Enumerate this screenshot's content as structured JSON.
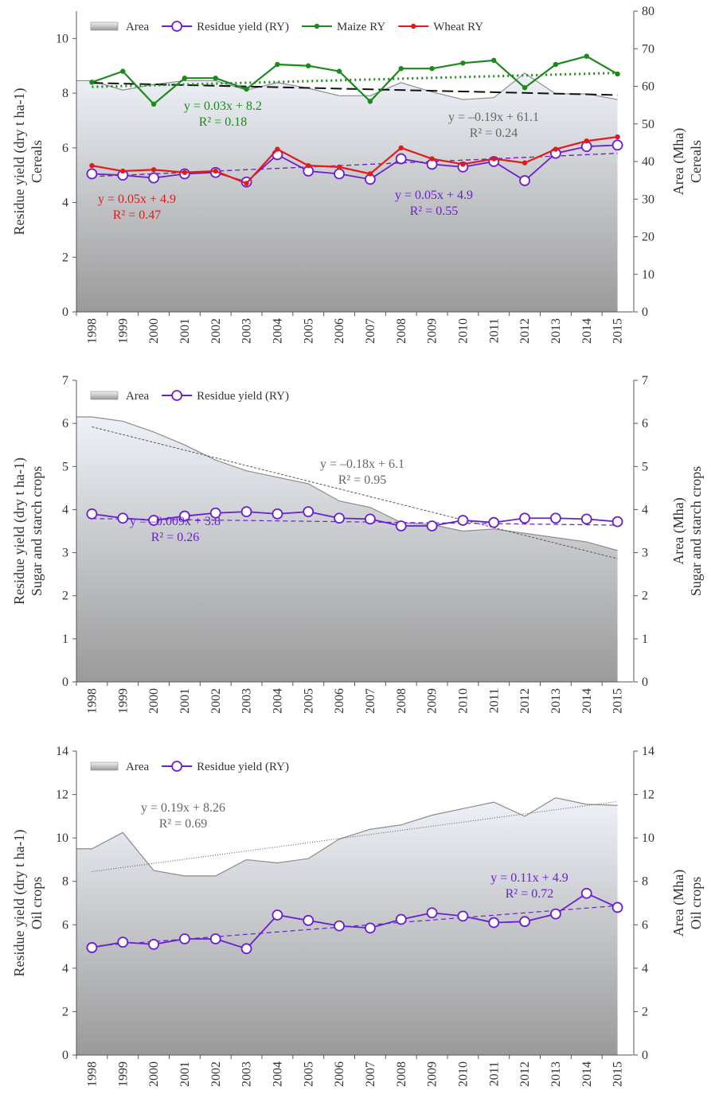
{
  "chart_data": [
    {
      "type": "line",
      "panel": "cereals",
      "x": [
        1998,
        1999,
        2000,
        2001,
        2002,
        2003,
        2004,
        2005,
        2006,
        2007,
        2008,
        2009,
        2010,
        2011,
        2012,
        2013,
        2014,
        2015
      ],
      "ylabel_left": [
        "Residue yield (dry t ha-1)",
        "Cereals"
      ],
      "ylabel_right": [
        "Area (Mha)",
        "Cereals"
      ],
      "ylim_left": [
        0,
        11
      ],
      "yticks_left": [
        0,
        2,
        4,
        6,
        8,
        10
      ],
      "ylim_right": [
        0,
        80
      ],
      "yticks_right": [
        0,
        10,
        20,
        30,
        40,
        50,
        60,
        70,
        80
      ],
      "legend": [
        "Area",
        "Residue yield (RY)",
        "Maize RY",
        "Wheat RY"
      ],
      "area": {
        "name": "Area",
        "axis": "right",
        "color": "#8c8c8c",
        "values": [
          61.5,
          59,
          60.5,
          61.5,
          61.5,
          59,
          61,
          59.5,
          57.5,
          57.5,
          61,
          58.5,
          56.5,
          57,
          63.5,
          58,
          58,
          56.5
        ]
      },
      "series": [
        {
          "name": "Residue yield (RY)",
          "axis": "left",
          "color": "#6a1fd0",
          "marker": "open-circle",
          "values": [
            5.05,
            5.0,
            4.9,
            5.05,
            5.1,
            4.75,
            5.75,
            5.15,
            5.05,
            4.85,
            5.6,
            5.4,
            5.3,
            5.5,
            4.8,
            5.8,
            6.05,
            6.1
          ]
        },
        {
          "name": "Maize RY",
          "axis": "left",
          "color": "#1a8a1a",
          "marker": "dot",
          "values": [
            8.4,
            8.8,
            7.6,
            8.55,
            8.55,
            8.15,
            9.05,
            9.0,
            8.8,
            7.7,
            8.9,
            8.9,
            9.1,
            9.2,
            8.2,
            9.05,
            9.35,
            8.7
          ]
        },
        {
          "name": "Wheat RY",
          "axis": "left",
          "color": "#e41a1a",
          "marker": "dot",
          "values": [
            5.35,
            5.15,
            5.2,
            5.1,
            5.15,
            4.7,
            5.95,
            5.35,
            5.3,
            5.05,
            6.0,
            5.6,
            5.4,
            5.6,
            5.45,
            5.95,
            6.25,
            6.4
          ]
        }
      ],
      "trendlines": [
        {
          "of": "Area",
          "equation": "y = –0.19x + 61.1",
          "r2": "R² = 0.24",
          "slope": -0.19,
          "intercept": 61.1
        },
        {
          "of": "Maize RY",
          "equation": "y = 0.03x + 8.2",
          "r2": "R² = 0.18",
          "slope": 0.03,
          "intercept": 8.2
        },
        {
          "of": "Wheat RY",
          "equation": "y = 0.05x + 4.9",
          "r2": "R² = 0.47",
          "slope": 0.05,
          "intercept": 4.9
        },
        {
          "of": "Residue yield (RY)",
          "equation": "y = 0.05x + 4.9",
          "r2": "R² = 0.55",
          "slope": 0.05,
          "intercept": 4.9
        }
      ]
    },
    {
      "type": "line",
      "panel": "sugar_starch",
      "x": [
        1998,
        1999,
        2000,
        2001,
        2002,
        2003,
        2004,
        2005,
        2006,
        2007,
        2008,
        2009,
        2010,
        2011,
        2012,
        2013,
        2014,
        2015
      ],
      "ylabel_left": [
        "Residue yield (dry t ha-1)",
        "Sugar and starch crops"
      ],
      "ylabel_right": [
        "Area (Mha)",
        "Sugar and starch crops"
      ],
      "ylim_left": [
        0,
        7
      ],
      "yticks_left": [
        0,
        1,
        2,
        3,
        4,
        5,
        6,
        7
      ],
      "ylim_right": [
        0,
        7
      ],
      "yticks_right": [
        0,
        1,
        2,
        3,
        4,
        5,
        6,
        7
      ],
      "legend": [
        "Area",
        "Residue yield (RY)"
      ],
      "area": {
        "name": "Area",
        "axis": "right",
        "color": "#8c8c8c",
        "values": [
          6.15,
          6.05,
          5.8,
          5.5,
          5.15,
          4.9,
          4.75,
          4.6,
          4.2,
          4.05,
          3.7,
          3.65,
          3.5,
          3.55,
          3.45,
          3.35,
          3.25,
          3.05
        ]
      },
      "series": [
        {
          "name": "Residue yield (RY)",
          "axis": "left",
          "color": "#6a1fd0",
          "marker": "open-circle",
          "values": [
            3.9,
            3.8,
            3.75,
            3.85,
            3.92,
            3.95,
            3.9,
            3.95,
            3.8,
            3.78,
            3.62,
            3.62,
            3.75,
            3.7,
            3.8,
            3.8,
            3.78,
            3.72
          ]
        }
      ],
      "trendlines": [
        {
          "of": "Area",
          "equation": "y = –0.18x + 6.1",
          "r2": "R² = 0.95",
          "slope": -0.18,
          "intercept": 6.1
        },
        {
          "of": "Residue yield (RY)",
          "equation": "y = –0.009x + 3.8",
          "r2": "R² = 0.26",
          "slope": -0.009,
          "intercept": 3.8
        }
      ]
    },
    {
      "type": "line",
      "panel": "oil",
      "x": [
        1998,
        1999,
        2000,
        2001,
        2002,
        2003,
        2004,
        2005,
        2006,
        2007,
        2008,
        2009,
        2010,
        2011,
        2012,
        2013,
        2014,
        2015
      ],
      "ylabel_left": [
        "Residue yield (dry t ha-1)",
        "Oil crops"
      ],
      "ylabel_right": [
        "Area (Mha)",
        "Oil crops"
      ],
      "ylim_left": [
        0,
        14
      ],
      "yticks_left": [
        0,
        2,
        4,
        6,
        8,
        10,
        12,
        14
      ],
      "ylim_right": [
        0,
        14
      ],
      "yticks_right": [
        0,
        2,
        4,
        6,
        8,
        10,
        12,
        14
      ],
      "legend": [
        "Area",
        "Residue yield (RY)"
      ],
      "area": {
        "name": "Area",
        "axis": "right",
        "color": "#8c8c8c",
        "values": [
          9.5,
          10.25,
          8.5,
          8.25,
          8.25,
          9.0,
          8.85,
          9.05,
          9.95,
          10.4,
          10.6,
          11.05,
          11.35,
          11.65,
          11.0,
          11.85,
          11.55,
          11.5
        ]
      },
      "series": [
        {
          "name": "Residue yield (RY)",
          "axis": "left",
          "color": "#6a1fd0",
          "marker": "open-circle",
          "values": [
            4.95,
            5.2,
            5.1,
            5.35,
            5.35,
            4.9,
            6.45,
            6.2,
            5.95,
            5.85,
            6.25,
            6.55,
            6.4,
            6.1,
            6.15,
            6.5,
            7.45,
            6.8
          ]
        }
      ],
      "trendlines": [
        {
          "of": "Area",
          "equation": "y = 0.19x + 8.26",
          "r2": "R² = 0.69",
          "slope": 0.19,
          "intercept": 8.26
        },
        {
          "of": "Residue yield (RY)",
          "equation": "y = 0.11x + 4.9",
          "r2": "R² = 0.72",
          "slope": 0.11,
          "intercept": 4.9
        }
      ]
    }
  ]
}
